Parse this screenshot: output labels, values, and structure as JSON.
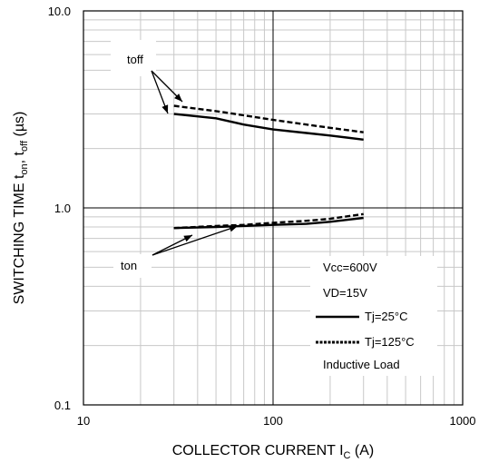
{
  "chart_data": {
    "type": "line",
    "xscale": "log",
    "yscale": "log",
    "xlim": [
      10,
      1000
    ],
    "ylim": [
      0.1,
      10
    ],
    "grid": true,
    "x_ticks": [
      "10",
      "100",
      "1000"
    ],
    "y_ticks": [
      "0.1",
      "1.0",
      "10.0"
    ],
    "xlabel_main": "COLLECTOR CURRENT I",
    "xlabel_sub": "C",
    "xlabel_unit": " (A)",
    "ylabel_main": "SWITCHING TIME t",
    "ylabel_sub1": "on",
    "ylabel_mid": ", t",
    "ylabel_sub2": "off",
    "ylabel_unit": " (µs)",
    "series": [
      {
        "name": "Tj=25°C",
        "group": "toff",
        "style": "solid",
        "x": [
          30,
          50,
          70,
          100,
          150,
          200,
          300
        ],
        "y": [
          3.0,
          2.85,
          2.65,
          2.5,
          2.4,
          2.33,
          2.22
        ]
      },
      {
        "name": "Tj=125°C",
        "group": "toff",
        "style": "dashed",
        "x": [
          30,
          50,
          70,
          100,
          150,
          200,
          300
        ],
        "y": [
          3.3,
          3.1,
          2.95,
          2.8,
          2.65,
          2.55,
          2.42
        ]
      },
      {
        "name": "Tj=25°C",
        "group": "ton",
        "style": "solid",
        "x": [
          30,
          50,
          70,
          100,
          150,
          200,
          300
        ],
        "y": [
          0.79,
          0.8,
          0.81,
          0.82,
          0.83,
          0.85,
          0.89
        ]
      },
      {
        "name": "Tj=125°C",
        "group": "ton",
        "style": "dashed",
        "x": [
          30,
          50,
          70,
          100,
          150,
          200,
          300
        ],
        "y": [
          0.79,
          0.81,
          0.82,
          0.84,
          0.86,
          0.88,
          0.93
        ]
      }
    ],
    "annotations": {
      "toff_label": "toff",
      "ton_label": "ton",
      "conditions": [
        "Vcc=600V",
        "VD=15V"
      ],
      "legend_solid": "Tj=25°C",
      "legend_dashed": "Tj=125°C",
      "load_note": "Inductive Load"
    },
    "legend_position": "bottom-right"
  }
}
